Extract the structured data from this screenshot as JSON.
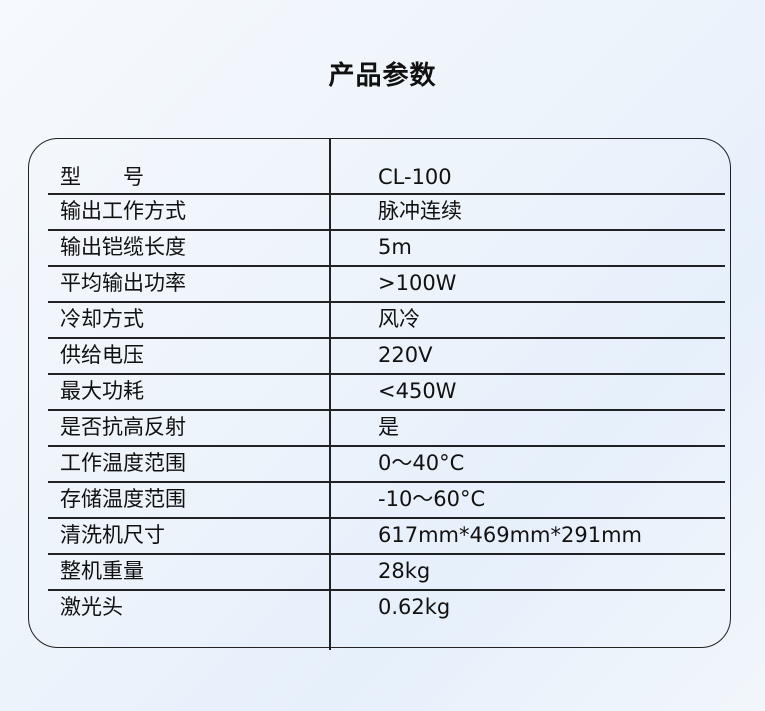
{
  "title": "产品参数",
  "rows": [
    {
      "label": "型　　号",
      "value": "CL-100"
    },
    {
      "label": "输出工作方式",
      "value": "脉冲连续"
    },
    {
      "label": "输出铠缆长度",
      "value": "5m"
    },
    {
      "label": "平均输出功率",
      "value": ">100W"
    },
    {
      "label": "冷却方式",
      "value": "风冷"
    },
    {
      "label": "供给电压",
      "value": "220V"
    },
    {
      "label": "最大功耗",
      "value": "<450W"
    },
    {
      "label": "是否抗高反射",
      "value": "是"
    },
    {
      "label": "工作温度范围",
      "value": "0～40°C"
    },
    {
      "label": "存储温度范围",
      "value": "-10～60°C"
    },
    {
      "label": "清洗机尺寸",
      "value": "617mm*469mm*291mm"
    },
    {
      "label": "整机重量",
      "value": "28kg"
    },
    {
      "label": "激光头",
      "value": "0.62kg"
    }
  ]
}
